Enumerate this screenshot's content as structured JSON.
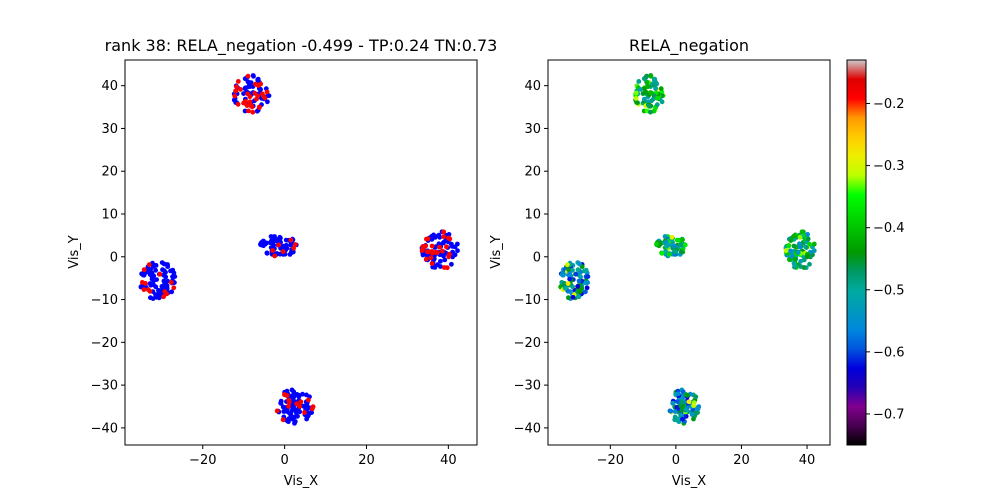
{
  "chart_data": [
    {
      "type": "scatter",
      "title": "rank 38: RELA_negation -0.499 - TP:0.24 TN:0.73",
      "xlabel": "Vis_X",
      "ylabel": "Vis_Y",
      "xlim": [
        -39,
        47
      ],
      "ylim": [
        -44,
        46
      ],
      "xticks": [
        -20,
        0,
        20,
        40
      ],
      "yticks": [
        -40,
        -30,
        -20,
        -10,
        0,
        10,
        20,
        30,
        40
      ],
      "xtick_labels": [
        "−20",
        "0",
        "20",
        "40"
      ],
      "ytick_labels": [
        "−40",
        "−30",
        "−20",
        "−10",
        "0",
        "10",
        "20",
        "30",
        "40"
      ],
      "grid": false,
      "legend": "none",
      "colors": {
        "negative_class": "#0000ff",
        "positive_class": "#ff0000"
      },
      "clusters": [
        {
          "center": [
            -8,
            38
          ],
          "radius": [
            4.5,
            4.5
          ],
          "count": 85,
          "red_fraction": 0.4
        },
        {
          "center": [
            -31,
            -5.5
          ],
          "radius": [
            4.5,
            4.5
          ],
          "count": 95,
          "red_fraction": 0.15
        },
        {
          "center": [
            -1.5,
            2.5
          ],
          "radius": [
            4.5,
            2.6
          ],
          "count": 70,
          "red_fraction": 0.1
        },
        {
          "center": [
            38,
            1.5
          ],
          "radius": [
            4.5,
            4.5
          ],
          "count": 95,
          "red_fraction": 0.3
        },
        {
          "center": [
            2.5,
            -35
          ],
          "radius": [
            4.5,
            4
          ],
          "count": 95,
          "red_fraction": 0.15
        }
      ]
    },
    {
      "type": "scatter",
      "title": "RELA_negation",
      "xlabel": "Vis_X",
      "ylabel": "Vis_Y",
      "xlim": [
        -39,
        47
      ],
      "ylim": [
        -44,
        46
      ],
      "xticks": [
        -20,
        0,
        20,
        40
      ],
      "yticks": [
        -40,
        -30,
        -20,
        -10,
        0,
        10,
        20,
        30,
        40
      ],
      "xtick_labels": [
        "−20",
        "0",
        "20",
        "40"
      ],
      "ytick_labels": [
        "−40",
        "−30",
        "−20",
        "−10",
        "0",
        "10",
        "20",
        "30",
        "40"
      ],
      "grid": false,
      "colorbar": {
        "min": -0.75,
        "max": -0.13,
        "ticks": [
          -0.7,
          -0.6,
          -0.5,
          -0.4,
          -0.3,
          -0.2
        ],
        "tick_labels": [
          "−0.7",
          "−0.6",
          "−0.5",
          "−0.4",
          "−0.3",
          "−0.2"
        ],
        "colormap": "nipy_spectral"
      },
      "clusters": [
        {
          "center": [
            -8,
            38
          ],
          "radius": [
            4.5,
            4.5
          ],
          "count": 85,
          "mean_value": -0.42
        },
        {
          "center": [
            -31,
            -5.5
          ],
          "radius": [
            4.5,
            4.5
          ],
          "count": 95,
          "mean_value": -0.53
        },
        {
          "center": [
            -1.5,
            2.5
          ],
          "radius": [
            4.5,
            2.6
          ],
          "count": 70,
          "mean_value": -0.47
        },
        {
          "center": [
            38,
            1.5
          ],
          "radius": [
            4.5,
            4.5
          ],
          "count": 95,
          "mean_value": -0.46
        },
        {
          "center": [
            2.5,
            -35
          ],
          "radius": [
            4.5,
            4
          ],
          "count": 95,
          "mean_value": -0.53
        }
      ]
    }
  ]
}
